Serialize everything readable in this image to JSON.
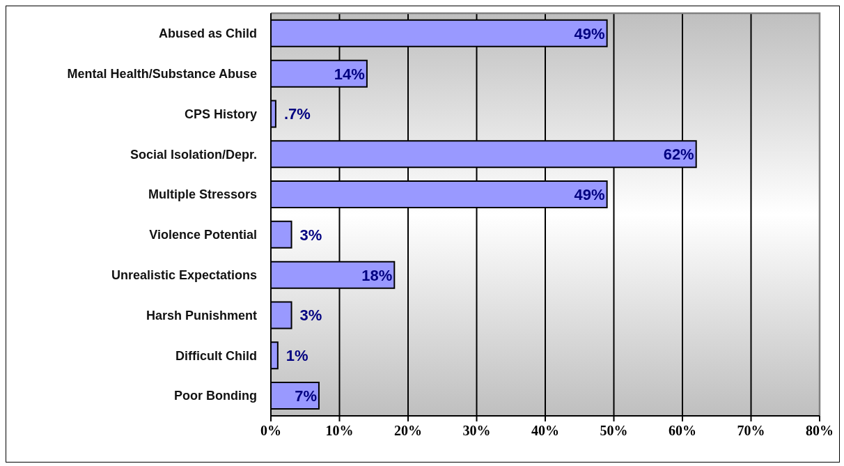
{
  "chart_data": {
    "type": "bar",
    "orientation": "horizontal",
    "categories": [
      "Abused as Child",
      "Mental Health/Substance Abuse",
      "CPS History",
      "Social Isolation/Depr.",
      "Multiple Stressors",
      "Violence Potential",
      "Unrealistic Expectations",
      "Harsh Punishment",
      "Difficult Child",
      "Poor Bonding"
    ],
    "values": [
      49,
      14,
      0.7,
      62,
      49,
      3,
      18,
      3,
      1,
      7
    ],
    "value_labels": [
      "49%",
      "14%",
      ".7%",
      "62%",
      "49%",
      "3%",
      "18%",
      "3%",
      "1%",
      "7%"
    ],
    "color": "#9999ff",
    "xlim": [
      0,
      80
    ],
    "xticks": [
      {
        "value": 0,
        "label": "0%"
      },
      {
        "value": 10,
        "label": "10%"
      },
      {
        "value": 20,
        "label": "20%"
      },
      {
        "value": 30,
        "label": "30%"
      },
      {
        "value": 40,
        "label": "40%"
      },
      {
        "value": 50,
        "label": "50%"
      },
      {
        "value": 60,
        "label": "60%"
      },
      {
        "value": 70,
        "label": "70%"
      },
      {
        "value": 80,
        "label": "80%"
      }
    ],
    "grid": "x"
  }
}
